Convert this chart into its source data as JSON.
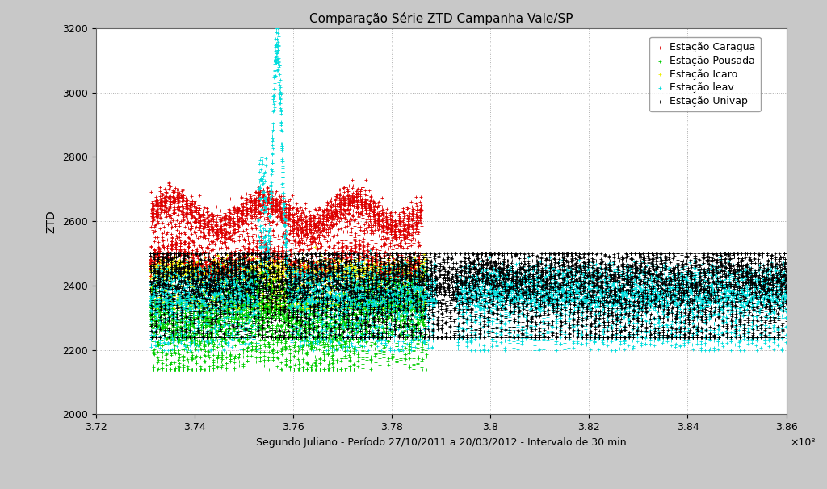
{
  "title": "Comparação Série ZTD Campanha Vale/SP",
  "xlabel": "Segundo Juliano - Período 27/10/2011 a 20/03/2012 - Intervalo de 30 min",
  "ylabel": "ZTD",
  "xlim": [
    372000000,
    386000000
  ],
  "ylim": [
    2000,
    3200
  ],
  "yticks": [
    2000,
    2200,
    2400,
    2600,
    2800,
    3000,
    3200
  ],
  "xticks": [
    372000000,
    374000000,
    376000000,
    378000000,
    380000000,
    382000000,
    384000000,
    386000000
  ],
  "xtick_labels": [
    "3.72",
    "3.74",
    "3.76",
    "3.78",
    "3.8",
    "3.82",
    "3.84",
    "3.86"
  ],
  "x_scale_label": "×10⁸",
  "background_color": "#c8c8c8",
  "plot_bg_color": "#ffffff",
  "grid_color": "#aaaaaa",
  "stations": [
    {
      "name": "Estação Caragua",
      "color": "#dd0000",
      "marker": "+",
      "zorder": 4
    },
    {
      "name": "Estação Pousada",
      "color": "#00cc00",
      "marker": "+",
      "zorder": 3
    },
    {
      "name": "Estação Icaro",
      "color": "#eeee00",
      "marker": "+",
      "zorder": 2
    },
    {
      "name": "Estação leav",
      "color": "#00dddd",
      "marker": "+",
      "zorder": 5
    },
    {
      "name": "Estação Univap",
      "color": "#000000",
      "marker": "+",
      "zorder": 6
    }
  ],
  "seed": 42,
  "n_points": 8000
}
